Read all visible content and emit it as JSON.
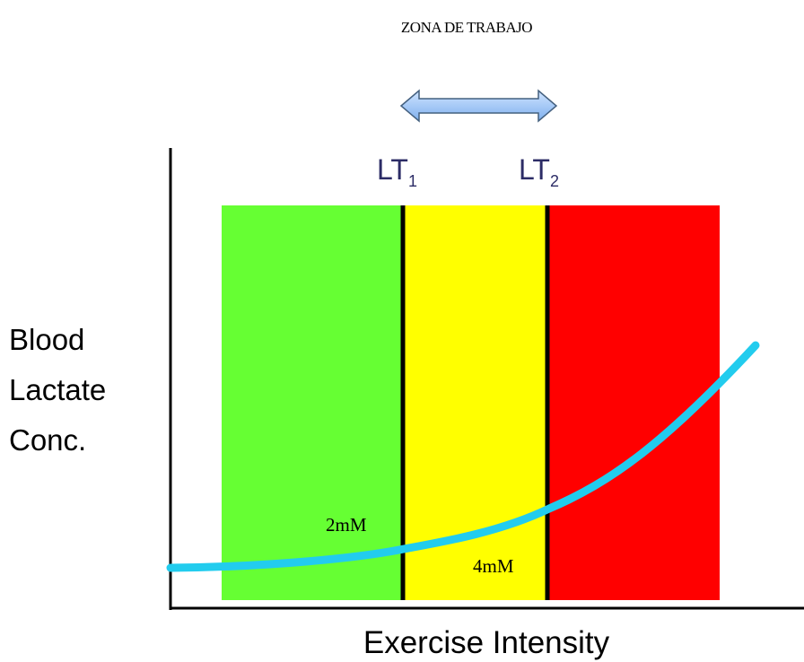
{
  "title": "ZONA DE TRABAJO",
  "thresholds": [
    {
      "label": "LT",
      "subscript": "1"
    },
    {
      "label": "LT",
      "subscript": "2"
    }
  ],
  "y_axis_label": [
    "Blood",
    "Lactate",
    "Conc."
  ],
  "x_axis_label": "Exercise Intensity",
  "annotations": [
    "2mM",
    "4mM"
  ]
}
